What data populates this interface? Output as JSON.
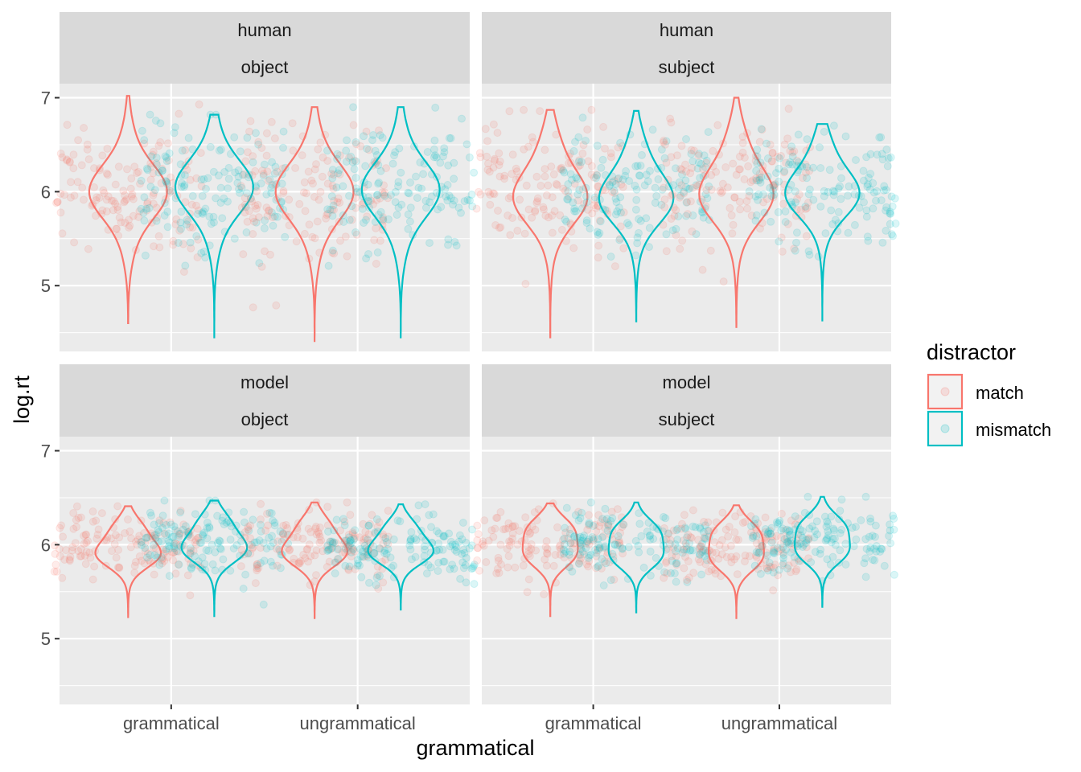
{
  "chart_data": {
    "type": "violin",
    "xlabel": "grammatical",
    "ylabel": "log.rt",
    "categories": [
      "grammatical",
      "ungrammatical"
    ],
    "y_ticks": [
      5,
      6,
      7
    ],
    "ylim": [
      4.3,
      7.15
    ],
    "grid": true,
    "legend": {
      "title": "distractor",
      "position": "right",
      "entries": [
        {
          "name": "match",
          "color": "#F8766D"
        },
        {
          "name": "mismatch",
          "color": "#00BFC4"
        }
      ]
    },
    "panels": [
      {
        "row": 0,
        "col": 0,
        "strip": [
          "human",
          "object"
        ],
        "groups": [
          {
            "category": "grammatical",
            "distractor": "match",
            "min": 4.6,
            "max": 7.02,
            "median": 6.0
          },
          {
            "category": "grammatical",
            "distractor": "mismatch",
            "min": 4.44,
            "max": 6.82,
            "median": 6.05
          },
          {
            "category": "ungrammatical",
            "distractor": "match",
            "min": 4.4,
            "max": 6.9,
            "median": 6.0
          },
          {
            "category": "ungrammatical",
            "distractor": "mismatch",
            "min": 4.44,
            "max": 6.9,
            "median": 6.02
          }
        ]
      },
      {
        "row": 0,
        "col": 1,
        "strip": [
          "human",
          "subject"
        ],
        "groups": [
          {
            "category": "grammatical",
            "distractor": "match",
            "min": 4.45,
            "max": 6.87,
            "median": 6.02
          },
          {
            "category": "grammatical",
            "distractor": "mismatch",
            "min": 4.62,
            "max": 6.86,
            "median": 6.0
          },
          {
            "category": "ungrammatical",
            "distractor": "match",
            "min": 4.55,
            "max": 7.0,
            "median": 6.05
          },
          {
            "category": "ungrammatical",
            "distractor": "mismatch",
            "min": 4.62,
            "max": 6.72,
            "median": 6.05
          }
        ]
      },
      {
        "row": 1,
        "col": 0,
        "strip": [
          "model",
          "object"
        ],
        "groups": [
          {
            "category": "grammatical",
            "distractor": "match",
            "min": 5.22,
            "max": 6.41,
            "median": 5.98
          },
          {
            "category": "grammatical",
            "distractor": "mismatch",
            "min": 5.23,
            "max": 6.47,
            "median": 6.04
          },
          {
            "category": "ungrammatical",
            "distractor": "match",
            "min": 5.21,
            "max": 6.45,
            "median": 6.0
          },
          {
            "category": "ungrammatical",
            "distractor": "mismatch",
            "min": 5.31,
            "max": 6.43,
            "median": 6.0
          }
        ]
      },
      {
        "row": 1,
        "col": 1,
        "strip": [
          "model",
          "subject"
        ],
        "groups": [
          {
            "category": "grammatical",
            "distractor": "match",
            "min": 5.24,
            "max": 6.44,
            "median": 6.02
          },
          {
            "category": "grammatical",
            "distractor": "mismatch",
            "min": 5.28,
            "max": 6.45,
            "median": 6.0
          },
          {
            "category": "ungrammatical",
            "distractor": "match",
            "min": 5.21,
            "max": 6.42,
            "median": 5.98
          },
          {
            "category": "ungrammatical",
            "distractor": "mismatch",
            "min": 5.33,
            "max": 6.51,
            "median": 6.05
          }
        ]
      }
    ]
  }
}
